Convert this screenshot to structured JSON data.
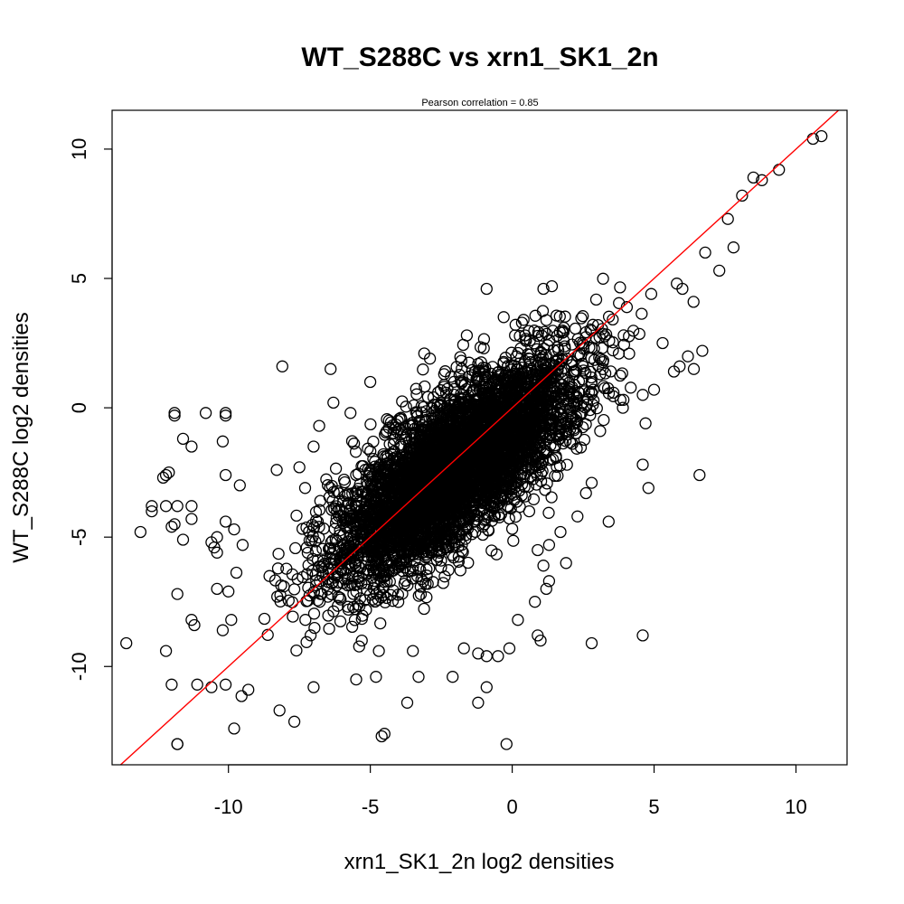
{
  "chart_data": {
    "type": "scatter",
    "title": "WT_S288C vs xrn1_SK1_2n",
    "subtitle": "Pearson correlation =  0.85",
    "xlabel": "xrn1_SK1_2n log2 densities",
    "ylabel": "WT_S288C log2 densities",
    "xlim": [
      -14.1,
      11.8
    ],
    "ylim": [
      -13.8,
      11.5
    ],
    "x_ticks": [
      -10,
      -5,
      0,
      5,
      10
    ],
    "y_ticks": [
      -10,
      -5,
      0,
      5,
      10
    ],
    "x_tick_labels": [
      "-10",
      "-5",
      "0",
      "5",
      "10"
    ],
    "y_tick_labels": [
      "-10",
      "-5",
      "0",
      "5",
      "10"
    ],
    "grid": false,
    "legend": "none",
    "marker": "open-circle",
    "point_color": "#000000",
    "reference_line": {
      "type": "identity",
      "intercept": 0,
      "slope": 1,
      "color": "#ff0000"
    },
    "dense_cloud": {
      "n": 5000,
      "center": [
        -2.0,
        -2.3
      ],
      "principal_slope": 1.0,
      "major_sd": 2.8,
      "minor_sd": 1.05
    },
    "series": [
      {
        "values": [
          [
            10.9,
            10.5
          ],
          [
            10.6,
            10.4
          ],
          [
            9.4,
            9.2
          ],
          [
            8.5,
            8.9
          ],
          [
            8.8,
            8.8
          ],
          [
            8.1,
            8.2
          ],
          [
            7.6,
            7.3
          ],
          [
            7.8,
            6.2
          ],
          [
            6.8,
            6.0
          ],
          [
            7.3,
            5.3
          ],
          [
            6.0,
            4.6
          ],
          [
            5.8,
            4.8
          ],
          [
            4.9,
            4.4
          ],
          [
            6.7,
            2.2
          ],
          [
            5.3,
            2.5
          ],
          [
            6.4,
            1.5
          ],
          [
            5.9,
            1.6
          ],
          [
            5.7,
            1.4
          ],
          [
            5.0,
            0.7
          ],
          [
            4.6,
            0.5
          ],
          [
            4.7,
            -0.6
          ],
          [
            3.9,
            0.0
          ],
          [
            4.6,
            -2.2
          ],
          [
            4.8,
            -3.1
          ],
          [
            6.6,
            -2.6
          ],
          [
            3.4,
            -4.4
          ],
          [
            3.1,
            -0.9
          ],
          [
            1.4,
            4.7
          ],
          [
            1.1,
            4.6
          ],
          [
            0.4,
            3.4
          ],
          [
            0.1,
            2.8
          ],
          [
            0.3,
            2.3
          ],
          [
            -0.9,
            4.6
          ],
          [
            -1.0,
            2.3
          ],
          [
            -1.6,
            2.8
          ],
          [
            -3.1,
            2.1
          ],
          [
            -2.4,
            1.3
          ],
          [
            -2.9,
            1.9
          ],
          [
            -5.0,
            1.0
          ],
          [
            -8.1,
            1.6
          ],
          [
            -6.4,
            1.5
          ],
          [
            -6.3,
            0.2
          ],
          [
            -6.8,
            -0.7
          ],
          [
            -5.7,
            -0.2
          ],
          [
            -7.0,
            -1.5
          ],
          [
            -7.5,
            -2.3
          ],
          [
            -8.3,
            -2.4
          ],
          [
            -7.3,
            -3.1
          ],
          [
            -9.6,
            -3.0
          ],
          [
            -11.9,
            -0.2
          ],
          [
            -11.9,
            -0.3
          ],
          [
            -10.8,
            -0.2
          ],
          [
            -10.1,
            -0.2
          ],
          [
            -10.1,
            -0.3
          ],
          [
            -11.6,
            -1.2
          ],
          [
            -11.3,
            -1.5
          ],
          [
            -10.2,
            -1.3
          ],
          [
            -12.1,
            -2.5
          ],
          [
            -12.2,
            -2.6
          ],
          [
            -12.3,
            -2.7
          ],
          [
            -10.1,
            -2.6
          ],
          [
            -12.7,
            -3.8
          ],
          [
            -12.7,
            -4.0
          ],
          [
            -12.2,
            -3.8
          ],
          [
            -11.8,
            -3.8
          ],
          [
            -11.9,
            -4.5
          ],
          [
            -11.3,
            -3.8
          ],
          [
            -11.3,
            -4.3
          ],
          [
            -12.0,
            -4.6
          ],
          [
            -11.6,
            -5.1
          ],
          [
            -13.1,
            -4.8
          ],
          [
            -10.1,
            -4.4
          ],
          [
            -9.8,
            -4.7
          ],
          [
            -10.6,
            -5.2
          ],
          [
            -10.4,
            -5.0
          ],
          [
            -10.4,
            -5.6
          ],
          [
            -10.5,
            -5.4
          ],
          [
            -9.5,
            -5.3
          ],
          [
            -11.8,
            -7.2
          ],
          [
            -11.3,
            -8.2
          ],
          [
            -11.2,
            -8.4
          ],
          [
            -12.2,
            -9.4
          ],
          [
            -13.6,
            -9.1
          ],
          [
            -10.2,
            -8.6
          ],
          [
            -10.4,
            -7.0
          ],
          [
            -10.0,
            -7.1
          ],
          [
            -9.9,
            -8.2
          ],
          [
            -12.0,
            -10.7
          ],
          [
            -11.1,
            -10.7
          ],
          [
            -10.6,
            -10.8
          ],
          [
            -10.1,
            -10.7
          ],
          [
            -9.3,
            -10.9
          ],
          [
            -8.2,
            -11.7
          ],
          [
            -9.8,
            -12.4
          ],
          [
            -11.8,
            -13.0
          ],
          [
            -11.8,
            -13.0
          ],
          [
            -4.5,
            -12.6
          ],
          [
            -4.6,
            -12.7
          ],
          [
            -0.2,
            -13.0
          ],
          [
            -1.2,
            -11.4
          ],
          [
            -0.9,
            -10.8
          ],
          [
            -3.7,
            -11.4
          ],
          [
            -7.0,
            -10.8
          ],
          [
            -5.5,
            -10.5
          ],
          [
            -4.8,
            -10.4
          ],
          [
            -3.3,
            -10.4
          ],
          [
            -2.1,
            -10.4
          ],
          [
            -0.9,
            -9.6
          ],
          [
            -0.1,
            -9.3
          ],
          [
            -0.5,
            -9.6
          ],
          [
            0.9,
            -8.8
          ],
          [
            1.0,
            -9.0
          ],
          [
            2.8,
            -9.1
          ],
          [
            4.6,
            -8.8
          ],
          [
            0.2,
            -8.2
          ],
          [
            0.8,
            -7.5
          ],
          [
            1.2,
            -7.0
          ],
          [
            1.3,
            -6.7
          ],
          [
            1.1,
            -6.1
          ],
          [
            1.9,
            -6.0
          ],
          [
            1.3,
            -5.3
          ],
          [
            0.9,
            -5.5
          ],
          [
            1.7,
            -4.8
          ],
          [
            2.3,
            -4.2
          ],
          [
            0.6,
            -4.0
          ],
          [
            2.6,
            -3.3
          ],
          [
            2.8,
            -2.9
          ],
          [
            -1.2,
            -9.5
          ],
          [
            -1.7,
            -9.3
          ],
          [
            -3.5,
            -9.4
          ],
          [
            -4.7,
            -9.4
          ],
          [
            -5.3,
            -9.0
          ]
        ]
      }
    ]
  }
}
